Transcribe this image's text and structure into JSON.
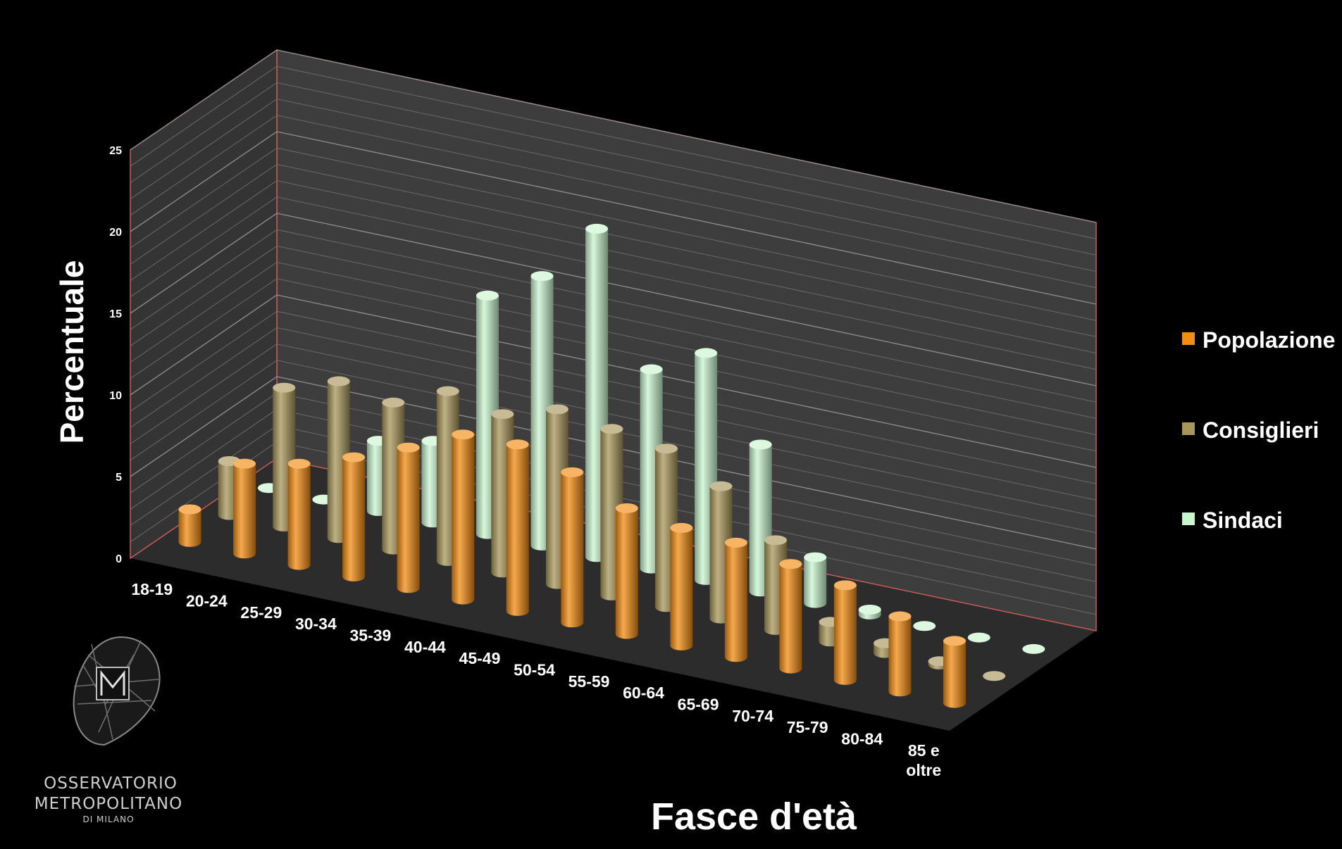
{
  "chart_data": {
    "type": "bar",
    "subtype": "3d-column",
    "xlabel": "Fasce d'età",
    "ylabel": "Percentuale",
    "ylim": [
      0,
      25
    ],
    "yticks": [
      0,
      5,
      10,
      15,
      20,
      25
    ],
    "grid": true,
    "legend": "right",
    "categories": [
      "18-19",
      "20-24",
      "25-29",
      "30-34",
      "35-39",
      "40-44",
      "45-49",
      "50-54",
      "55-59",
      "60-64",
      "65-69",
      "70-74",
      "75-79",
      "80-84",
      "85 e oltre"
    ],
    "series": [
      {
        "name": "Popolazione",
        "color": "#f28c12",
        "values": [
          2.0,
          5.5,
          6.2,
          7.3,
          8.6,
          10.1,
          10.2,
          9.2,
          7.7,
          7.2,
          7.0,
          6.4,
          5.8,
          4.6,
          3.8
        ]
      },
      {
        "name": "Consiglieri",
        "color": "#a8975a",
        "values": [
          3.3,
          8.5,
          9.6,
          9.0,
          10.4,
          9.7,
          10.7,
          10.2,
          9.7,
          8.1,
          5.5,
          1.2,
          0.6,
          0.2,
          0
        ]
      },
      {
        "name": "Sindaci",
        "color": "#c9f5cf",
        "values": [
          0,
          0,
          4.3,
          5.0,
          14.6,
          16.5,
          20.1,
          12.2,
          13.9,
          9.0,
          2.8,
          0.3,
          0,
          0,
          0
        ]
      }
    ]
  },
  "logo": {
    "line1": "OSSERVATORIO",
    "line2": "METROPOLITANO",
    "line3": "DI MILANO",
    "icon": "map-pin-m-icon"
  }
}
